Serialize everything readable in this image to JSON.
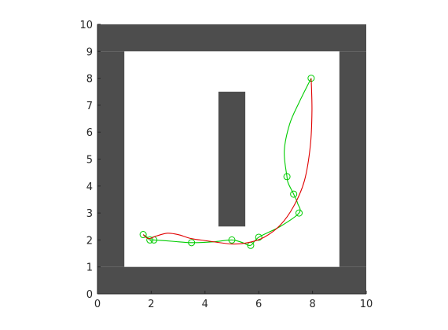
{
  "chart_data": {
    "type": "line",
    "title": "",
    "xlabel": "",
    "ylabel": "",
    "xlim": [
      0,
      10
    ],
    "ylim": [
      0,
      10
    ],
    "xticks": [
      0,
      2,
      4,
      6,
      8,
      10
    ],
    "yticks": [
      0,
      1,
      2,
      3,
      4,
      5,
      6,
      7,
      8,
      9,
      10
    ],
    "xtick_labels": [
      "0",
      "2",
      "4",
      "6",
      "8",
      "10"
    ],
    "ytick_labels": [
      "0",
      "1",
      "2",
      "3",
      "4",
      "5",
      "6",
      "7",
      "8",
      "9",
      "10"
    ],
    "grid": false,
    "legend": false,
    "obstacles": [
      {
        "x0": 0,
        "x1": 10,
        "y0": 0,
        "y1": 1
      },
      {
        "x0": 0,
        "x1": 10,
        "y0": 9,
        "y1": 10
      },
      {
        "x0": 0,
        "x1": 1,
        "y0": 1,
        "y1": 9
      },
      {
        "x0": 9,
        "x1": 10,
        "y0": 1,
        "y1": 9
      },
      {
        "x0": 4.5,
        "x1": 5.5,
        "y0": 2.5,
        "y1": 7.5
      }
    ],
    "obstacle_color": "#4d4d4d",
    "series": [
      {
        "color": "#00cc00",
        "marker": "circle",
        "x": [
          1.7,
          1.95,
          2.1,
          3.5,
          5.0,
          5.7,
          6.0,
          7.5,
          7.3,
          7.05,
          7.95
        ],
        "y": [
          2.2,
          2.0,
          2.0,
          1.9,
          2.0,
          1.8,
          2.1,
          3.0,
          3.7,
          4.35,
          8.0
        ],
        "path": [
          [
            1.7,
            2.2
          ],
          [
            1.85,
            2.1
          ],
          [
            1.95,
            2.0
          ],
          [
            2.1,
            2.0
          ],
          [
            2.8,
            1.95
          ],
          [
            3.5,
            1.9
          ],
          [
            4.3,
            1.93
          ],
          [
            5.0,
            2.0
          ],
          [
            5.4,
            1.9
          ],
          [
            5.7,
            1.8
          ],
          [
            6.0,
            2.1
          ],
          [
            6.8,
            2.5
          ],
          [
            7.5,
            3.0
          ],
          [
            7.45,
            3.35
          ],
          [
            7.3,
            3.7
          ],
          [
            7.1,
            4.1
          ],
          [
            7.05,
            4.35
          ],
          [
            6.95,
            5.3
          ],
          [
            7.15,
            6.3
          ],
          [
            7.5,
            7.1
          ],
          [
            7.95,
            8.0
          ]
        ]
      },
      {
        "color": "#e00000",
        "marker": "none",
        "path": [
          [
            1.7,
            2.2
          ],
          [
            1.9,
            2.05
          ],
          [
            2.2,
            2.15
          ],
          [
            2.6,
            2.25
          ],
          [
            3.0,
            2.2
          ],
          [
            3.5,
            2.05
          ],
          [
            4.2,
            1.95
          ],
          [
            5.0,
            1.85
          ],
          [
            5.6,
            1.9
          ],
          [
            6.2,
            2.1
          ],
          [
            6.8,
            2.55
          ],
          [
            7.3,
            3.25
          ],
          [
            7.7,
            4.2
          ],
          [
            7.92,
            5.5
          ],
          [
            7.98,
            6.8
          ],
          [
            7.95,
            8.0
          ]
        ]
      }
    ]
  }
}
